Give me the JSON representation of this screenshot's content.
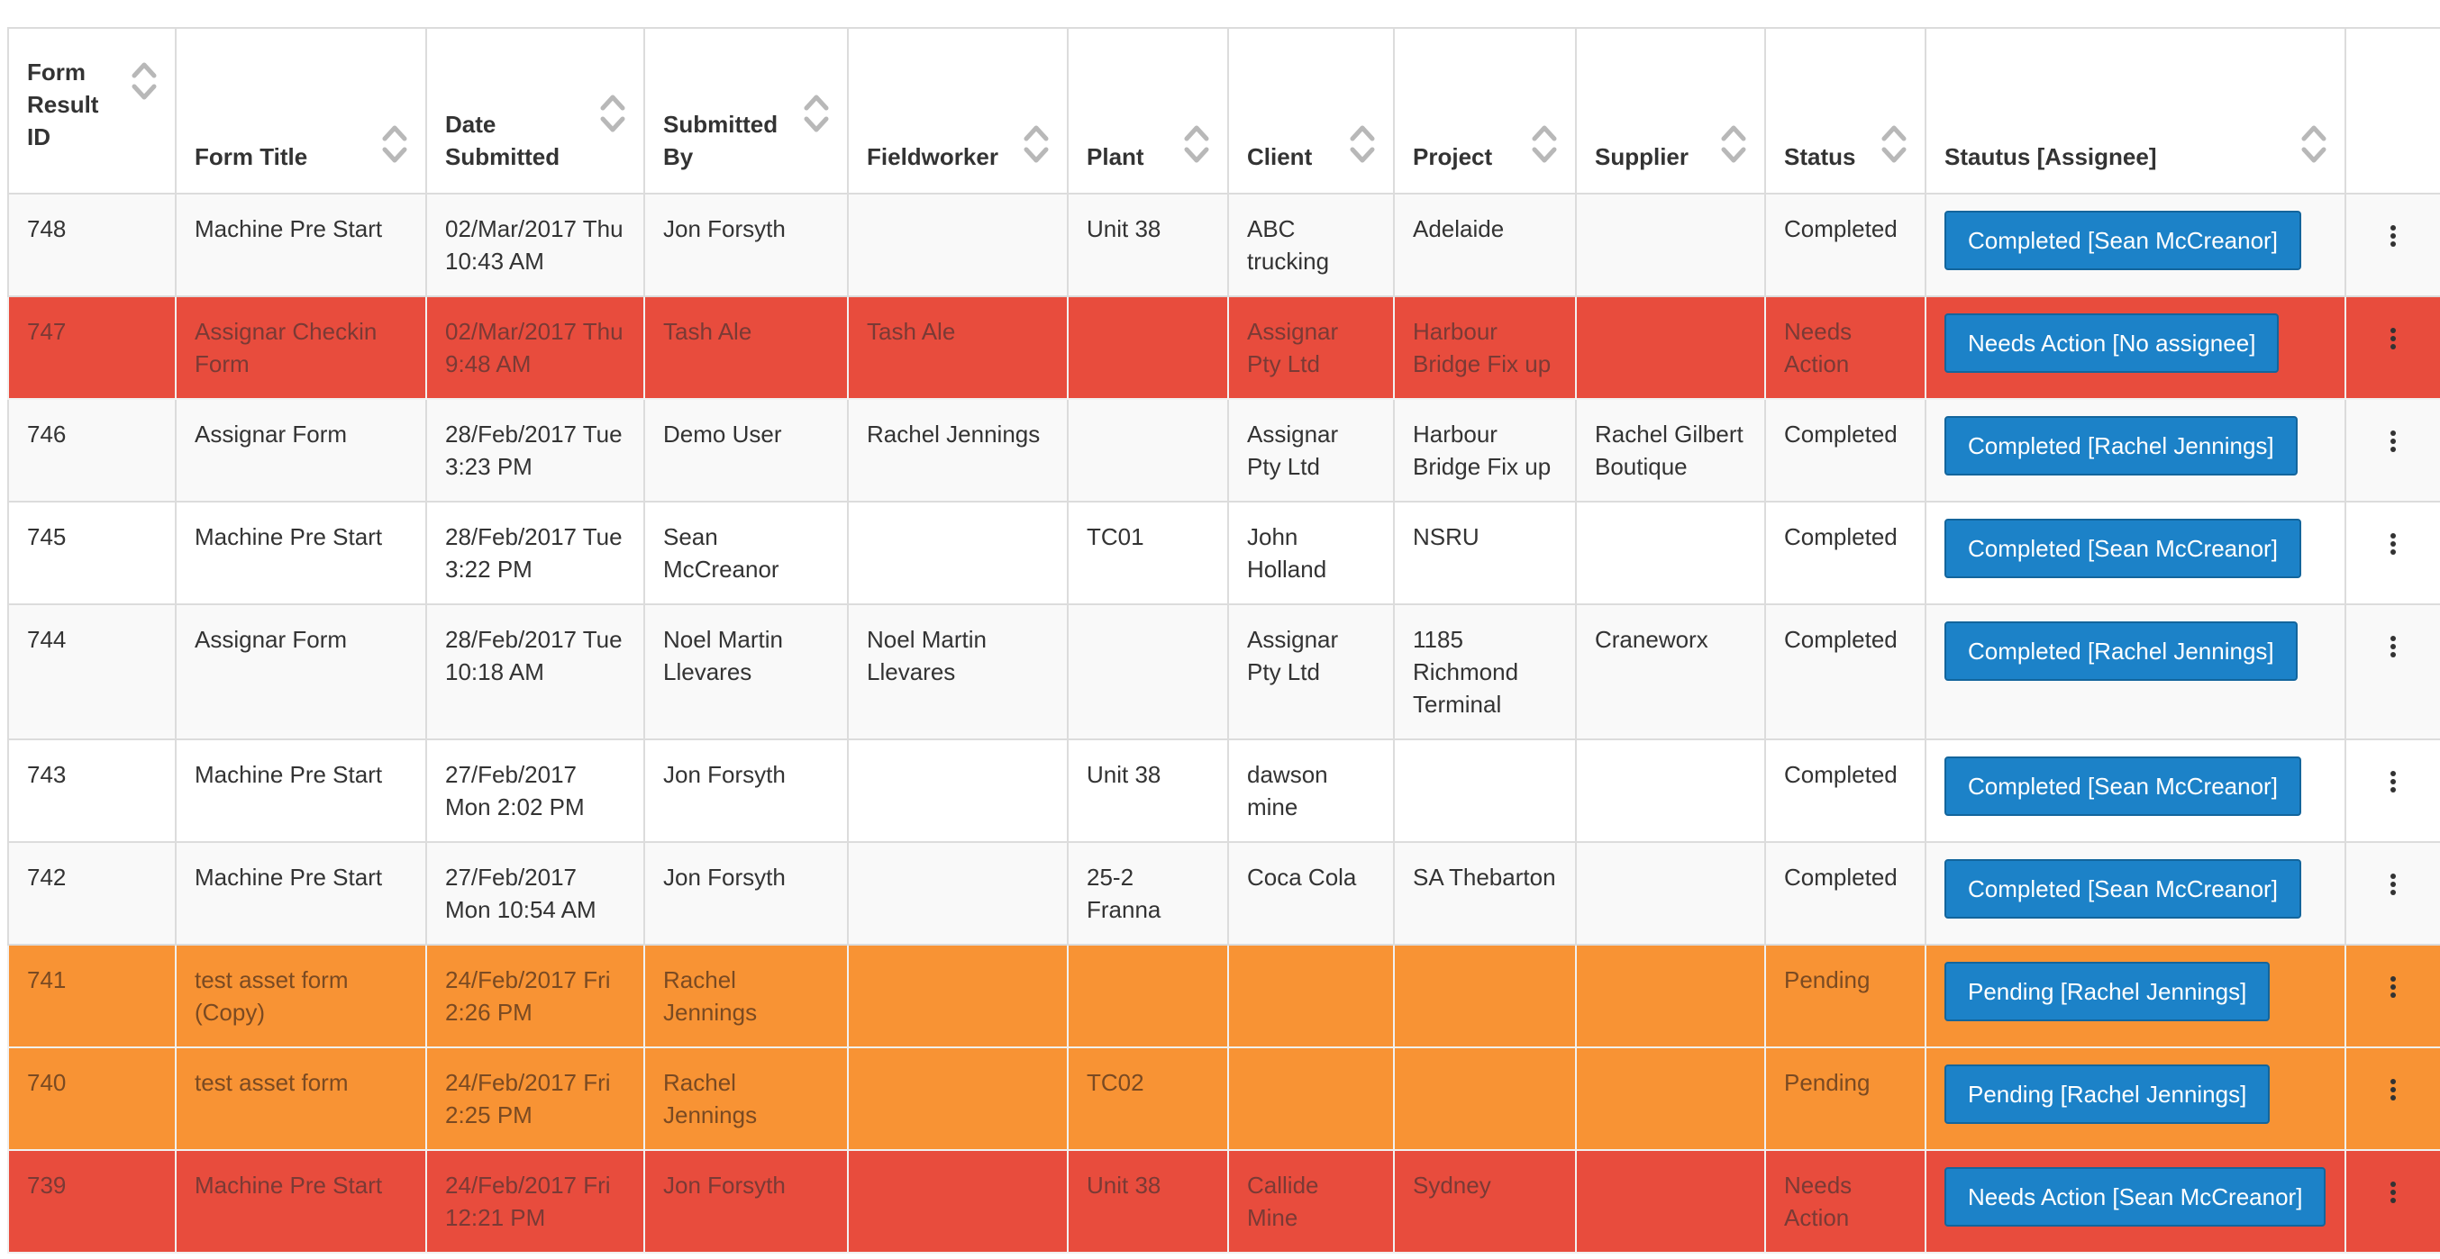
{
  "columns": [
    {
      "label": "Form Result ID",
      "sortable": true
    },
    {
      "label": "Form Title",
      "sortable": true
    },
    {
      "label": "Date Submitted",
      "sortable": true
    },
    {
      "label": "Submitted By",
      "sortable": true
    },
    {
      "label": "Fieldworker",
      "sortable": true
    },
    {
      "label": "Plant",
      "sortable": true
    },
    {
      "label": "Client",
      "sortable": true
    },
    {
      "label": "Project",
      "sortable": true
    },
    {
      "label": "Supplier",
      "sortable": true
    },
    {
      "label": "Status",
      "sortable": true
    },
    {
      "label": "Stautus [Assignee]",
      "sortable": true
    },
    {
      "label": "",
      "sortable": false
    }
  ],
  "colors": {
    "needs_action_row": "#e84c3d",
    "pending_row": "#f89334",
    "badge": "#1c82c8"
  },
  "rows": [
    {
      "id": "748",
      "title": "Machine Pre Start",
      "date": "02/Mar/2017 Thu 10:43 AM",
      "submitted_by": "Jon Forsyth",
      "fieldworker": "",
      "plant": "Unit 38",
      "client": "ABC trucking",
      "project": "Adelaide",
      "supplier": "",
      "status": "Completed",
      "assignee_badge": "Completed [Sean McCreanor]",
      "row_style": "grey",
      "menu_icon": "vertical-ellipsis-icon"
    },
    {
      "id": "747",
      "title": "Assignar Checkin Form",
      "date": "02/Mar/2017 Thu 9:48 AM",
      "submitted_by": "Tash Ale",
      "fieldworker": "Tash Ale",
      "plant": "",
      "client": "Assignar Pty Ltd",
      "project": "Harbour Bridge Fix up",
      "supplier": "",
      "status": "Needs Action",
      "assignee_badge": "Needs Action [No assignee]",
      "row_style": "red",
      "menu_icon": "vertical-ellipsis-icon"
    },
    {
      "id": "746",
      "title": "Assignar Form",
      "date": "28/Feb/2017 Tue 3:23 PM",
      "submitted_by": "Demo User",
      "fieldworker": "Rachel Jennings",
      "plant": "",
      "client": "Assignar Pty Ltd",
      "project": "Harbour Bridge Fix up",
      "supplier": "Rachel Gilbert Boutique",
      "status": "Completed",
      "assignee_badge": "Completed [Rachel Jennings]",
      "row_style": "grey",
      "menu_icon": "vertical-ellipsis-icon"
    },
    {
      "id": "745",
      "title": "Machine Pre Start",
      "date": "28/Feb/2017 Tue 3:22 PM",
      "submitted_by": "Sean McCreanor",
      "fieldworker": "",
      "plant": "TC01",
      "client": "John Holland",
      "project": "NSRU",
      "supplier": "",
      "status": "Completed",
      "assignee_badge": "Completed [Sean McCreanor]",
      "row_style": "white",
      "menu_icon": "vertical-ellipsis-icon"
    },
    {
      "id": "744",
      "title": "Assignar Form",
      "date": "28/Feb/2017 Tue 10:18 AM",
      "submitted_by": "Noel Martin Llevares",
      "fieldworker": "Noel Martin Llevares",
      "plant": "",
      "client": "Assignar Pty Ltd",
      "project": "1185 Richmond Terminal",
      "supplier": "Craneworx",
      "status": "Completed",
      "assignee_badge": "Completed [Rachel Jennings]",
      "row_style": "grey",
      "menu_icon": "vertical-ellipsis-icon"
    },
    {
      "id": "743",
      "title": "Machine Pre Start",
      "date": "27/Feb/2017 Mon 2:02 PM",
      "submitted_by": "Jon Forsyth",
      "fieldworker": "",
      "plant": "Unit 38",
      "client": "dawson mine",
      "project": "",
      "supplier": "",
      "status": "Completed",
      "assignee_badge": "Completed [Sean McCreanor]",
      "row_style": "white",
      "menu_icon": "vertical-ellipsis-icon"
    },
    {
      "id": "742",
      "title": "Machine Pre Start",
      "date": "27/Feb/2017 Mon 10:54 AM",
      "submitted_by": "Jon Forsyth",
      "fieldworker": "",
      "plant": "25-2 Franna",
      "client": "Coca Cola",
      "project": "SA Thebarton",
      "supplier": "",
      "status": "Completed",
      "assignee_badge": "Completed [Sean McCreanor]",
      "row_style": "grey",
      "menu_icon": "vertical-ellipsis-icon"
    },
    {
      "id": "741",
      "title": "test asset form (Copy)",
      "date": "24/Feb/2017 Fri 2:26 PM",
      "submitted_by": "Rachel Jennings",
      "fieldworker": "",
      "plant": "",
      "client": "",
      "project": "",
      "supplier": "",
      "status": "Pending",
      "assignee_badge": "Pending [Rachel Jennings]",
      "row_style": "orange",
      "menu_icon": "vertical-ellipsis-icon"
    },
    {
      "id": "740",
      "title": "test asset form",
      "date": "24/Feb/2017 Fri 2:25 PM",
      "submitted_by": "Rachel Jennings",
      "fieldworker": "",
      "plant": "TC02",
      "client": "",
      "project": "",
      "supplier": "",
      "status": "Pending",
      "assignee_badge": "Pending [Rachel Jennings]",
      "row_style": "orange",
      "menu_icon": "vertical-ellipsis-icon"
    },
    {
      "id": "739",
      "title": "Machine Pre Start",
      "date": "24/Feb/2017 Fri 12:21 PM",
      "submitted_by": "Jon Forsyth",
      "fieldworker": "",
      "plant": "Unit 38",
      "client": "Callide Mine",
      "project": "Sydney",
      "supplier": "",
      "status": "Needs Action",
      "assignee_badge": "Needs Action [Sean McCreanor]",
      "row_style": "red",
      "menu_icon": "vertical-ellipsis-icon"
    }
  ]
}
